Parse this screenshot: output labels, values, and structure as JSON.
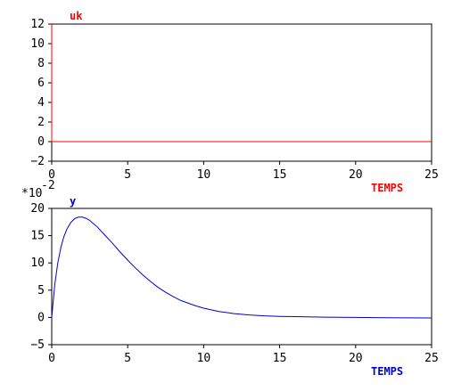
{
  "chart_data": [
    {
      "type": "line",
      "title": "uk",
      "xlabel": "TEMPS",
      "color": "#ff0000",
      "xlim": [
        0,
        25
      ],
      "ylim": [
        -2,
        12
      ],
      "xticks": [
        0,
        5,
        10,
        15,
        20,
        25
      ],
      "yticks": [
        -2,
        0,
        2,
        4,
        6,
        8,
        10,
        12
      ],
      "series": [
        {
          "x": [
            0,
            0,
            0,
            25
          ],
          "y": [
            0,
            12,
            0,
            0
          ]
        }
      ]
    },
    {
      "type": "line",
      "title": "y",
      "xlabel": "TEMPS",
      "color": "#0000cc",
      "scale_label": "*10",
      "scale_exponent": "-2",
      "xlim": [
        0,
        25
      ],
      "ylim": [
        -5,
        20
      ],
      "xticks": [
        0,
        5,
        10,
        15,
        20,
        25
      ],
      "yticks": [
        -5,
        0,
        5,
        10,
        15,
        20
      ],
      "series": [
        {
          "x": [
            0,
            0.2,
            0.4,
            0.6,
            0.8,
            1.0,
            1.25,
            1.5,
            1.75,
            2.0,
            2.25,
            2.5,
            3.0,
            3.5,
            4.0,
            4.5,
            5.0,
            5.5,
            6.0,
            6.5,
            7.0,
            7.5,
            8.0,
            8.5,
            9.0,
            9.5,
            10.0,
            11.0,
            12.0,
            13.0,
            14.0,
            15.0,
            16.0,
            18.0,
            20.0,
            22.0,
            25.0
          ],
          "y": [
            0,
            6.0,
            10.0,
            12.8,
            14.8,
            16.2,
            17.4,
            18.1,
            18.4,
            18.4,
            18.2,
            17.8,
            16.6,
            15.1,
            13.6,
            12.0,
            10.5,
            9.1,
            7.8,
            6.6,
            5.5,
            4.6,
            3.8,
            3.1,
            2.6,
            2.1,
            1.7,
            1.1,
            0.7,
            0.45,
            0.3,
            0.2,
            0.15,
            0.05,
            0.0,
            -0.05,
            -0.1
          ]
        }
      ]
    }
  ]
}
